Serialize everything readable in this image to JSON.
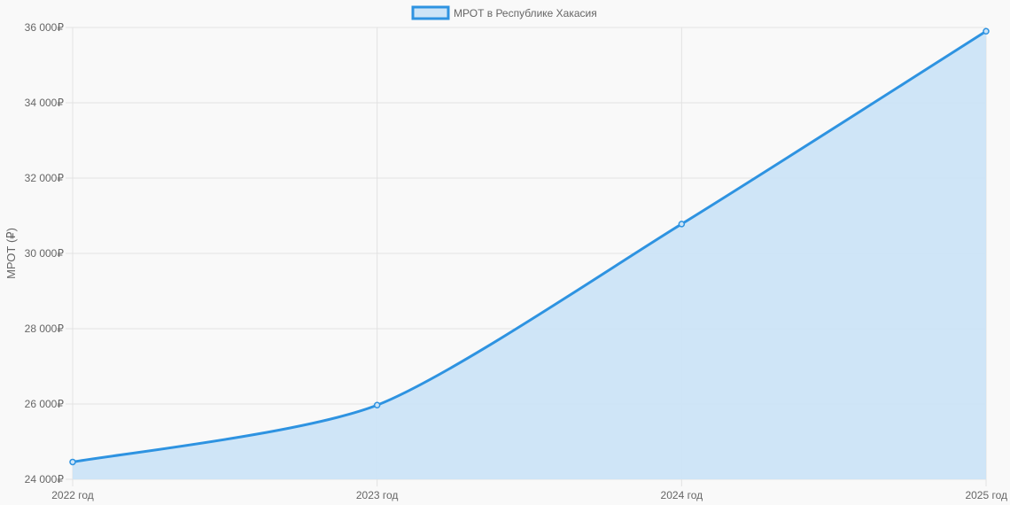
{
  "chart_data": {
    "type": "area",
    "categories": [
      "2022 год",
      "2023 год",
      "2024 год",
      "2025 год"
    ],
    "series": [
      {
        "name": "МРОТ в Республике Хакасия",
        "values": [
          24460,
          25970,
          30780,
          35900
        ]
      }
    ],
    "ylabel": "МРОТ (₽)",
    "xlabel": "",
    "ylim": [
      24000,
      36000
    ],
    "y_ticks": [
      24000,
      26000,
      28000,
      30000,
      32000,
      34000,
      36000
    ],
    "y_tick_labels": [
      "24 000₽",
      "26 000₽",
      "28 000₽",
      "30 000₽",
      "32 000₽",
      "34 000₽",
      "36 000₽"
    ],
    "grid": true,
    "legend": "top-center",
    "colors": {
      "line": "#2e93e1",
      "fill": "#cce4f7",
      "grid": "#e2e2e2",
      "axis_text": "#666666"
    }
  }
}
